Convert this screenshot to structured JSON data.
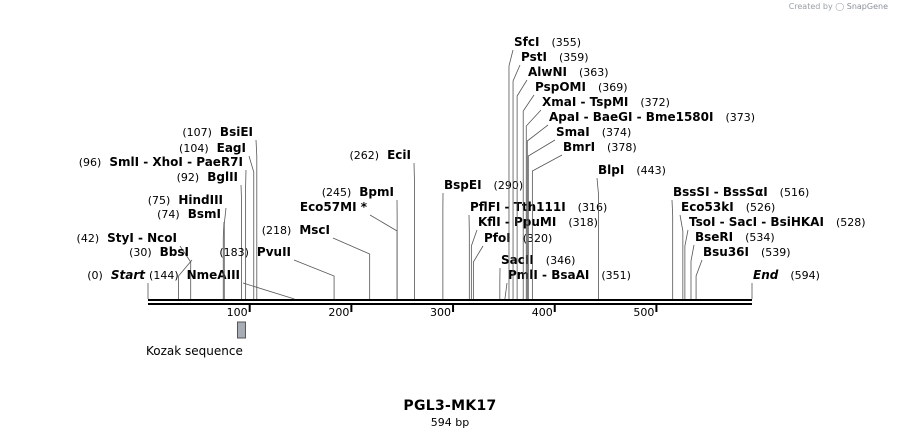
{
  "credit": {
    "prefix": "Created by",
    "brand": "SnapGene"
  },
  "plasmid": {
    "name": "PGL3-MK17",
    "length_label": "594 bp",
    "length": 594
  },
  "axis": {
    "ticks": [
      100,
      200,
      300,
      400,
      500
    ]
  },
  "features": [
    {
      "name": "Kozak sequence",
      "start": 88,
      "end": 94
    }
  ],
  "sites": [
    {
      "text": "Start",
      "pos": 0,
      "num": "(0)",
      "numLeft": true,
      "italic": true
    },
    {
      "text": "End",
      "pos": 594,
      "num": "(594)",
      "numLeft": false,
      "italic": true
    },
    {
      "text": "StyI  - NcoI",
      "pos": 42,
      "num": "(42)",
      "numLeft": true
    },
    {
      "text": "BbsI",
      "pos": 30,
      "num": "(30)",
      "numLeft": true
    },
    {
      "text": "NmeAIII",
      "pos": 144,
      "num": "(144)",
      "numLeft": true
    },
    {
      "text": "BsmI",
      "pos": 74,
      "num": "(74)",
      "numLeft": true
    },
    {
      "text": "HindIII",
      "pos": 75,
      "num": "(75)",
      "numLeft": true
    },
    {
      "text": "BglII",
      "pos": 92,
      "num": "(92)",
      "numLeft": true
    },
    {
      "text": "SmlI  - XhoI  - PaeR7I",
      "pos": 96,
      "num": "(96)",
      "numLeft": true
    },
    {
      "text": "EagI",
      "pos": 104,
      "num": "(104)",
      "numLeft": true
    },
    {
      "text": "BsiEI",
      "pos": 107,
      "num": "(107)",
      "numLeft": true
    },
    {
      "text": "PvuII",
      "pos": 183,
      "num": "(183)",
      "numLeft": true
    },
    {
      "text": "MscI",
      "pos": 218,
      "num": "(218)",
      "numLeft": true
    },
    {
      "text": "Eco57MI *",
      "pos": 245,
      "num": "",
      "numLeft": true
    },
    {
      "text": "BpmI",
      "pos": 245,
      "num": "(245)",
      "numLeft": true
    },
    {
      "text": "EciI",
      "pos": 262,
      "num": "(262)",
      "numLeft": true
    },
    {
      "text": "BspEI",
      "pos": 290,
      "num": "(290)",
      "numLeft": false
    },
    {
      "text": "PflFI  - Tth111I",
      "pos": 316,
      "num": "(316)",
      "numLeft": false
    },
    {
      "text": "KflI  - PpuMI",
      "pos": 318,
      "num": "(318)",
      "numLeft": false
    },
    {
      "text": "PfoI",
      "pos": 320,
      "num": "(320)",
      "numLeft": false
    },
    {
      "text": "SacII",
      "pos": 346,
      "num": "(346)",
      "numLeft": false
    },
    {
      "text": "PmlI  - BsaAI",
      "pos": 351,
      "num": "(351)",
      "numLeft": false
    },
    {
      "text": "SfcI",
      "pos": 355,
      "num": "(355)",
      "numLeft": false
    },
    {
      "text": "PstI",
      "pos": 359,
      "num": "(359)",
      "numLeft": false
    },
    {
      "text": "AlwNI",
      "pos": 363,
      "num": "(363)",
      "numLeft": false
    },
    {
      "text": "PspOMI",
      "pos": 369,
      "num": "(369)",
      "numLeft": false
    },
    {
      "text": "XmaI  - TspMI",
      "pos": 372,
      "num": "(372)",
      "numLeft": false
    },
    {
      "text": "ApaI  - BaeGI  - Bme1580I",
      "pos": 373,
      "num": "(373)",
      "numLeft": false
    },
    {
      "text": "SmaI",
      "pos": 374,
      "num": "(374)",
      "numLeft": false
    },
    {
      "text": "BmrI",
      "pos": 378,
      "num": "(378)",
      "numLeft": false
    },
    {
      "text": "BlpI",
      "pos": 443,
      "num": "(443)",
      "numLeft": false
    },
    {
      "text": "BssSI  - BssSαI",
      "pos": 516,
      "num": "(516)",
      "numLeft": false
    },
    {
      "text": "Eco53kI",
      "pos": 526,
      "num": "(526)",
      "numLeft": false
    },
    {
      "text": "TsoI  - SacI  - BsiHKAI",
      "pos": 528,
      "num": "(528)",
      "numLeft": false
    },
    {
      "text": "BseRI",
      "pos": 534,
      "num": "(534)",
      "numLeft": false
    },
    {
      "text": "Bsu36I",
      "pos": 539,
      "num": "(539)",
      "numLeft": false
    }
  ]
}
